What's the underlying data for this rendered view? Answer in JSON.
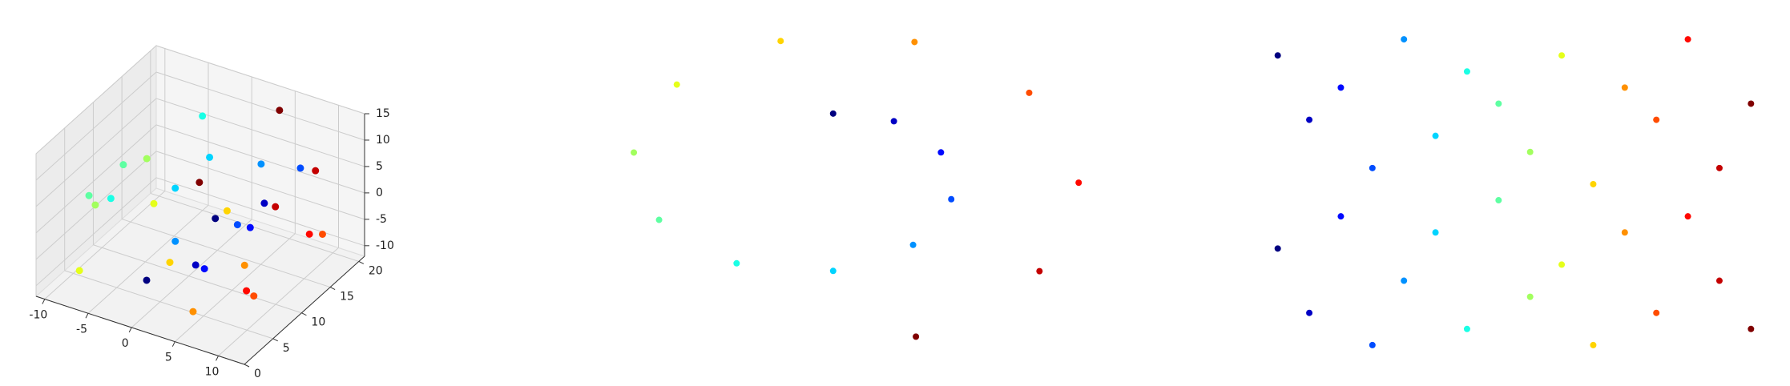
{
  "chart_data": [
    {
      "type": "scatter3d",
      "colormap": "jet",
      "grid": true,
      "x": [
        0.42,
        0.42,
        3.43,
        3.43,
        5.76,
        5.76,
        6.27,
        6.27,
        4.38,
        4.38,
        0.42,
        0.42,
        -4.36,
        -4.36,
        -8.2,
        -8.2,
        -9.45,
        -9.45,
        -7.32,
        -7.32,
        -2.18,
        -2.18,
        4.45,
        4.45,
        10.13,
        10.13,
        12.58,
        12.58,
        10.64,
        10.64,
        4.52,
        4.52
      ],
      "y": [
        2,
        14,
        6,
        18,
        4,
        12,
        9,
        20,
        1,
        16,
        7,
        13,
        3,
        19,
        11,
        5,
        8,
        17,
        2,
        15,
        10,
        20,
        4,
        13,
        6,
        18,
        1,
        12,
        9,
        16,
        5,
        19
      ],
      "z": [
        -4.78,
        -4.78,
        -4.17,
        -4.17,
        -1.68,
        -1.68,
        2.06,
        2.06,
        5.71,
        5.71,
        7.79,
        7.79,
        7.18,
        7.18,
        3.71,
        3.71,
        -1.67,
        -1.67,
        -7.1,
        -7.1,
        -10.58,
        -10.58,
        -10.5,
        -10.5,
        -6.44,
        -6.44,
        0.74,
        0.74,
        7.81,
        7.81,
        13.04,
        13.04
      ],
      "c": [
        4.8,
        4.8,
        5.4,
        5.4,
        6.0,
        6.0,
        6.6,
        6.6,
        7.2,
        7.2,
        7.8,
        7.8,
        8.4,
        8.4,
        9.0,
        9.0,
        9.6,
        9.6,
        10.2,
        10.2,
        10.8,
        10.8,
        11.4,
        11.4,
        12.0,
        12.0,
        12.6,
        12.6,
        13.2,
        13.2,
        13.8,
        13.8
      ],
      "xlim": [
        -11,
        13
      ],
      "ylim": [
        0,
        21
      ],
      "zlim": [
        -12,
        15
      ],
      "xticks": [
        -10,
        -5,
        0,
        5,
        10
      ],
      "yticks": [
        0,
        5,
        10,
        15,
        20
      ],
      "zticks": [
        -10,
        -5,
        0,
        5,
        10,
        15
      ]
    },
    {
      "type": "scatter",
      "colormap": "jet",
      "x": [
        0.42,
        3.43,
        5.76,
        6.27,
        4.38,
        0.42,
        -4.36,
        -8.2,
        -9.45,
        -7.32,
        -2.18,
        4.45,
        10.13,
        12.58,
        10.64,
        4.52
      ],
      "y": [
        -4.78,
        -4.17,
        -1.68,
        2.06,
        5.71,
        7.79,
        7.18,
        3.71,
        -1.67,
        -7.1,
        -10.58,
        -10.5,
        -6.44,
        0.74,
        7.81,
        13.04
      ],
      "c": [
        4.8,
        5.4,
        6.0,
        6.6,
        7.2,
        7.8,
        8.4,
        9.0,
        9.6,
        10.2,
        10.8,
        11.4,
        12.0,
        12.6,
        13.2,
        13.8
      ],
      "xlim": [
        -11,
        14
      ],
      "ylim": [
        15,
        -12
      ]
    },
    {
      "type": "scatter",
      "colormap": "jet",
      "x": [
        4.8,
        4.8,
        5.4,
        5.4,
        6.0,
        6.0,
        6.6,
        6.6,
        7.2,
        7.2,
        7.8,
        7.8,
        8.4,
        8.4,
        9.0,
        9.0,
        9.6,
        9.6,
        10.2,
        10.2,
        10.8,
        10.8,
        11.4,
        11.4,
        12.0,
        12.0,
        12.6,
        12.6,
        13.2,
        13.2,
        13.8,
        13.8
      ],
      "y": [
        2,
        14,
        6,
        18,
        4,
        12,
        9,
        20,
        1,
        16,
        7,
        13,
        3,
        19,
        11,
        5,
        8,
        17,
        2,
        15,
        10,
        20,
        4,
        13,
        6,
        18,
        1,
        12,
        9,
        16,
        5,
        19
      ],
      "c": [
        4.8,
        4.8,
        5.4,
        5.4,
        6.0,
        6.0,
        6.6,
        6.6,
        7.2,
        7.2,
        7.8,
        7.8,
        8.4,
        8.4,
        9.0,
        9.0,
        9.6,
        9.6,
        10.2,
        10.2,
        10.8,
        10.8,
        11.4,
        11.4,
        12.0,
        12.0,
        12.6,
        12.6,
        13.2,
        13.2,
        13.8,
        13.8
      ],
      "xlim": [
        4.5,
        14.1
      ],
      "ylim": [
        21,
        0
      ]
    }
  ]
}
